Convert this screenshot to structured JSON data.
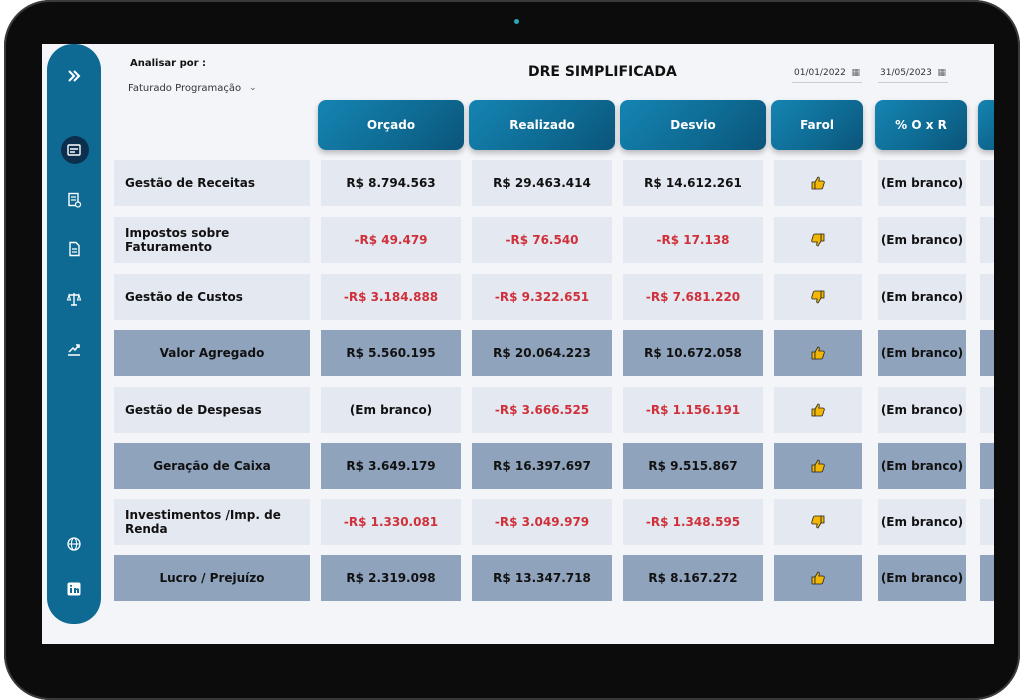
{
  "filter": {
    "label": "Analisar por :",
    "value": "Faturado Programação"
  },
  "title": "DRE SIMPLIFICADA",
  "dates": {
    "start": "01/01/2022",
    "end": "31/05/2023"
  },
  "columns": [
    "Orçado",
    "Realizado",
    "Desvio",
    "Farol",
    "% O x R"
  ],
  "rows": [
    {
      "label": "Gestão de Receitas",
      "orcado": "R$ 8.794.563",
      "realizado": "R$ 29.463.414",
      "desvio": "R$ 14.612.261",
      "farol": "up",
      "pct": "(Em branco)",
      "neg": [
        false,
        false,
        false
      ],
      "dark": false,
      "center": false
    },
    {
      "label": "Impostos sobre Faturamento",
      "orcado": "-R$ 49.479",
      "realizado": "-R$ 76.540",
      "desvio": "-R$ 17.138",
      "farol": "down",
      "pct": "(Em branco)",
      "neg": [
        true,
        true,
        true
      ],
      "dark": false,
      "center": false
    },
    {
      "label": "Gestão de Custos",
      "orcado": "-R$ 3.184.888",
      "realizado": "-R$ 9.322.651",
      "desvio": "-R$ 7.681.220",
      "farol": "down",
      "pct": "(Em branco)",
      "neg": [
        true,
        true,
        true
      ],
      "dark": false,
      "center": false
    },
    {
      "label": "Valor Agregado",
      "orcado": "R$ 5.560.195",
      "realizado": "R$ 20.064.223",
      "desvio": "R$ 10.672.058",
      "farol": "up",
      "pct": "(Em branco)",
      "neg": [
        false,
        false,
        false
      ],
      "dark": true,
      "center": true
    },
    {
      "label": "Gestão de Despesas",
      "orcado": "(Em branco)",
      "realizado": "-R$ 3.666.525",
      "desvio": "-R$ 1.156.191",
      "farol": "up",
      "pct": "(Em branco)",
      "neg": [
        false,
        true,
        true
      ],
      "dark": false,
      "center": false
    },
    {
      "label": "Geração de Caixa",
      "orcado": "R$ 3.649.179",
      "realizado": "R$ 16.397.697",
      "desvio": "R$ 9.515.867",
      "farol": "up",
      "pct": "(Em branco)",
      "neg": [
        false,
        false,
        false
      ],
      "dark": true,
      "center": true
    },
    {
      "label": "Investimentos /Imp. de Renda",
      "orcado": "-R$ 1.330.081",
      "realizado": "-R$ 3.049.979",
      "desvio": "-R$ 1.348.595",
      "farol": "down",
      "pct": "(Em branco)",
      "neg": [
        true,
        true,
        true
      ],
      "dark": false,
      "center": false
    },
    {
      "label": "Lucro / Prejuízo",
      "orcado": "R$ 2.319.098",
      "realizado": "R$ 13.347.718",
      "desvio": "R$ 8.167.272",
      "farol": "up",
      "pct": "(Em branco)",
      "neg": [
        false,
        false,
        false
      ],
      "dark": true,
      "center": true
    }
  ],
  "sidebar": [
    "expand-icon",
    "dashboard-icon",
    "report-check-icon",
    "document-icon",
    "balance-scale-icon",
    "growth-chart-icon",
    "globe-icon",
    "linkedin-icon"
  ],
  "colors": {
    "accent": "#0e6a92",
    "negative": "#d0303a",
    "thumb": "#f2b705"
  }
}
